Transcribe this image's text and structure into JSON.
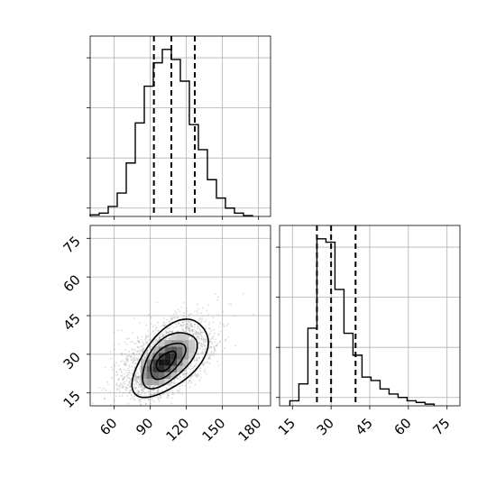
{
  "chart_data": {
    "type": "corner",
    "parameters": 2,
    "grid": true,
    "marginals": [
      {
        "type": "histogram",
        "param_index": 0,
        "xlim": [
          40,
          190
        ],
        "bin_edges": [
          40,
          47.5,
          55,
          62.5,
          70,
          77.5,
          85,
          92.5,
          100,
          107.5,
          115,
          122.5,
          130,
          137.5,
          145,
          152.5,
          160,
          167.5,
          175
        ],
        "counts": [
          0.01,
          0.02,
          0.06,
          0.14,
          0.32,
          0.56,
          0.78,
          0.92,
          1.0,
          0.94,
          0.81,
          0.55,
          0.4,
          0.22,
          0.11,
          0.05,
          0.02,
          0.005
        ],
        "quantiles": [
          93,
          107.5,
          127
        ]
      },
      {
        "type": "histogram",
        "param_index": 1,
        "xlim": [
          10,
          80
        ],
        "bin_edges": [
          14,
          17.5,
          21,
          24.5,
          28,
          31.5,
          35,
          38.5,
          42,
          45.5,
          49,
          52.5,
          56,
          59.5,
          63,
          66.5,
          70
        ],
        "counts": [
          0.03,
          0.13,
          0.46,
          0.99,
          0.97,
          0.69,
          0.43,
          0.3,
          0.17,
          0.15,
          0.1,
          0.07,
          0.05,
          0.03,
          0.02,
          0.01
        ],
        "quantiles": [
          24.5,
          30,
          39.5
        ]
      }
    ],
    "joint": {
      "type": "2d-density",
      "x_param": 0,
      "y_param": 1,
      "xlim": [
        40,
        190
      ],
      "ylim": [
        10,
        80
      ],
      "x_ticks": [
        60,
        90,
        120,
        150,
        180
      ],
      "y_ticks": [
        15,
        30,
        45,
        60,
        75
      ],
      "center": [
        102,
        27
      ]
    },
    "x_ticks_param0": [
      "60",
      "90",
      "120",
      "150",
      "180"
    ],
    "y_ticks_param1": [
      "15",
      "30",
      "45",
      "60",
      "75"
    ],
    "x_ticks_param1": [
      "15",
      "30",
      "45",
      "60",
      "75"
    ],
    "colors": {
      "lines": "#000000",
      "scatter": "#9a9a9a",
      "grid": "#b0b0b0"
    }
  }
}
